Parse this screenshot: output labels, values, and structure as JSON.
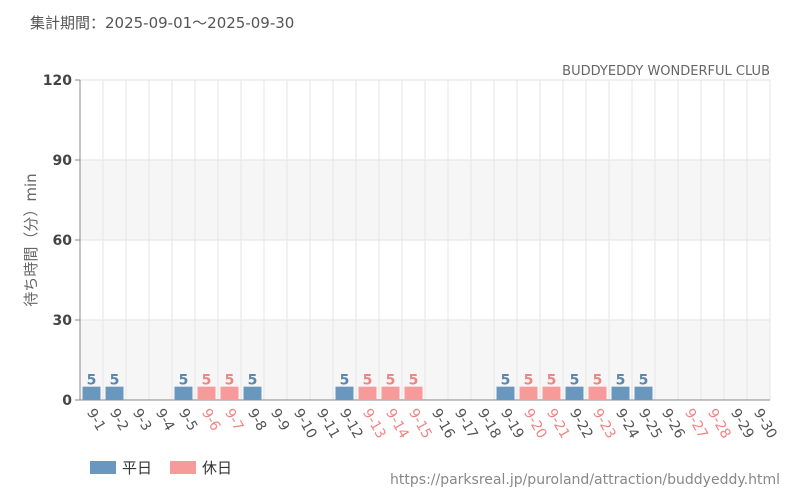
{
  "header": {
    "period": "集計期間：2025-09-01～2025-09-30"
  },
  "footer": {
    "source_url": "https://parksreal.jp/puroland/attraction/buddyeddy.html"
  },
  "colors": {
    "weekday": "#6a97be",
    "holiday": "#f79a9a",
    "weekday_text": "#5a87ae",
    "holiday_text": "#f08585"
  },
  "chart_data": {
    "type": "bar",
    "title": "BUDDYEDDY WONDERFUL CLUB",
    "xlabel": "",
    "ylabel": "待ち時間（分）min",
    "ylim": [
      0,
      120
    ],
    "yticks": [
      0,
      30,
      60,
      90,
      120
    ],
    "grid": true,
    "legend_position": "bottom-left",
    "categories": [
      "9-1",
      "9-2",
      "9-3",
      "9-4",
      "9-5",
      "9-6",
      "9-7",
      "9-8",
      "9-9",
      "9-10",
      "9-11",
      "9-12",
      "9-13",
      "9-14",
      "9-15",
      "9-16",
      "9-17",
      "9-18",
      "9-19",
      "9-20",
      "9-21",
      "9-22",
      "9-23",
      "9-24",
      "9-25",
      "9-26",
      "9-27",
      "9-28",
      "9-29",
      "9-30"
    ],
    "values": [
      5,
      5,
      null,
      null,
      5,
      5,
      5,
      5,
      null,
      null,
      null,
      5,
      5,
      5,
      5,
      null,
      null,
      null,
      5,
      5,
      5,
      5,
      5,
      5,
      5,
      null,
      null,
      null,
      null,
      null
    ],
    "day_type": [
      "weekday",
      "weekday",
      "weekday",
      "weekday",
      "weekday",
      "holiday",
      "holiday",
      "weekday",
      "weekday",
      "weekday",
      "weekday",
      "weekday",
      "holiday",
      "holiday",
      "holiday",
      "weekday",
      "weekday",
      "weekday",
      "weekday",
      "holiday",
      "holiday",
      "weekday",
      "holiday",
      "weekday",
      "weekday",
      "weekday",
      "holiday",
      "holiday",
      "weekday",
      "weekday"
    ],
    "legend": [
      {
        "key": "weekday",
        "label": "平日"
      },
      {
        "key": "holiday",
        "label": "休日"
      }
    ]
  }
}
